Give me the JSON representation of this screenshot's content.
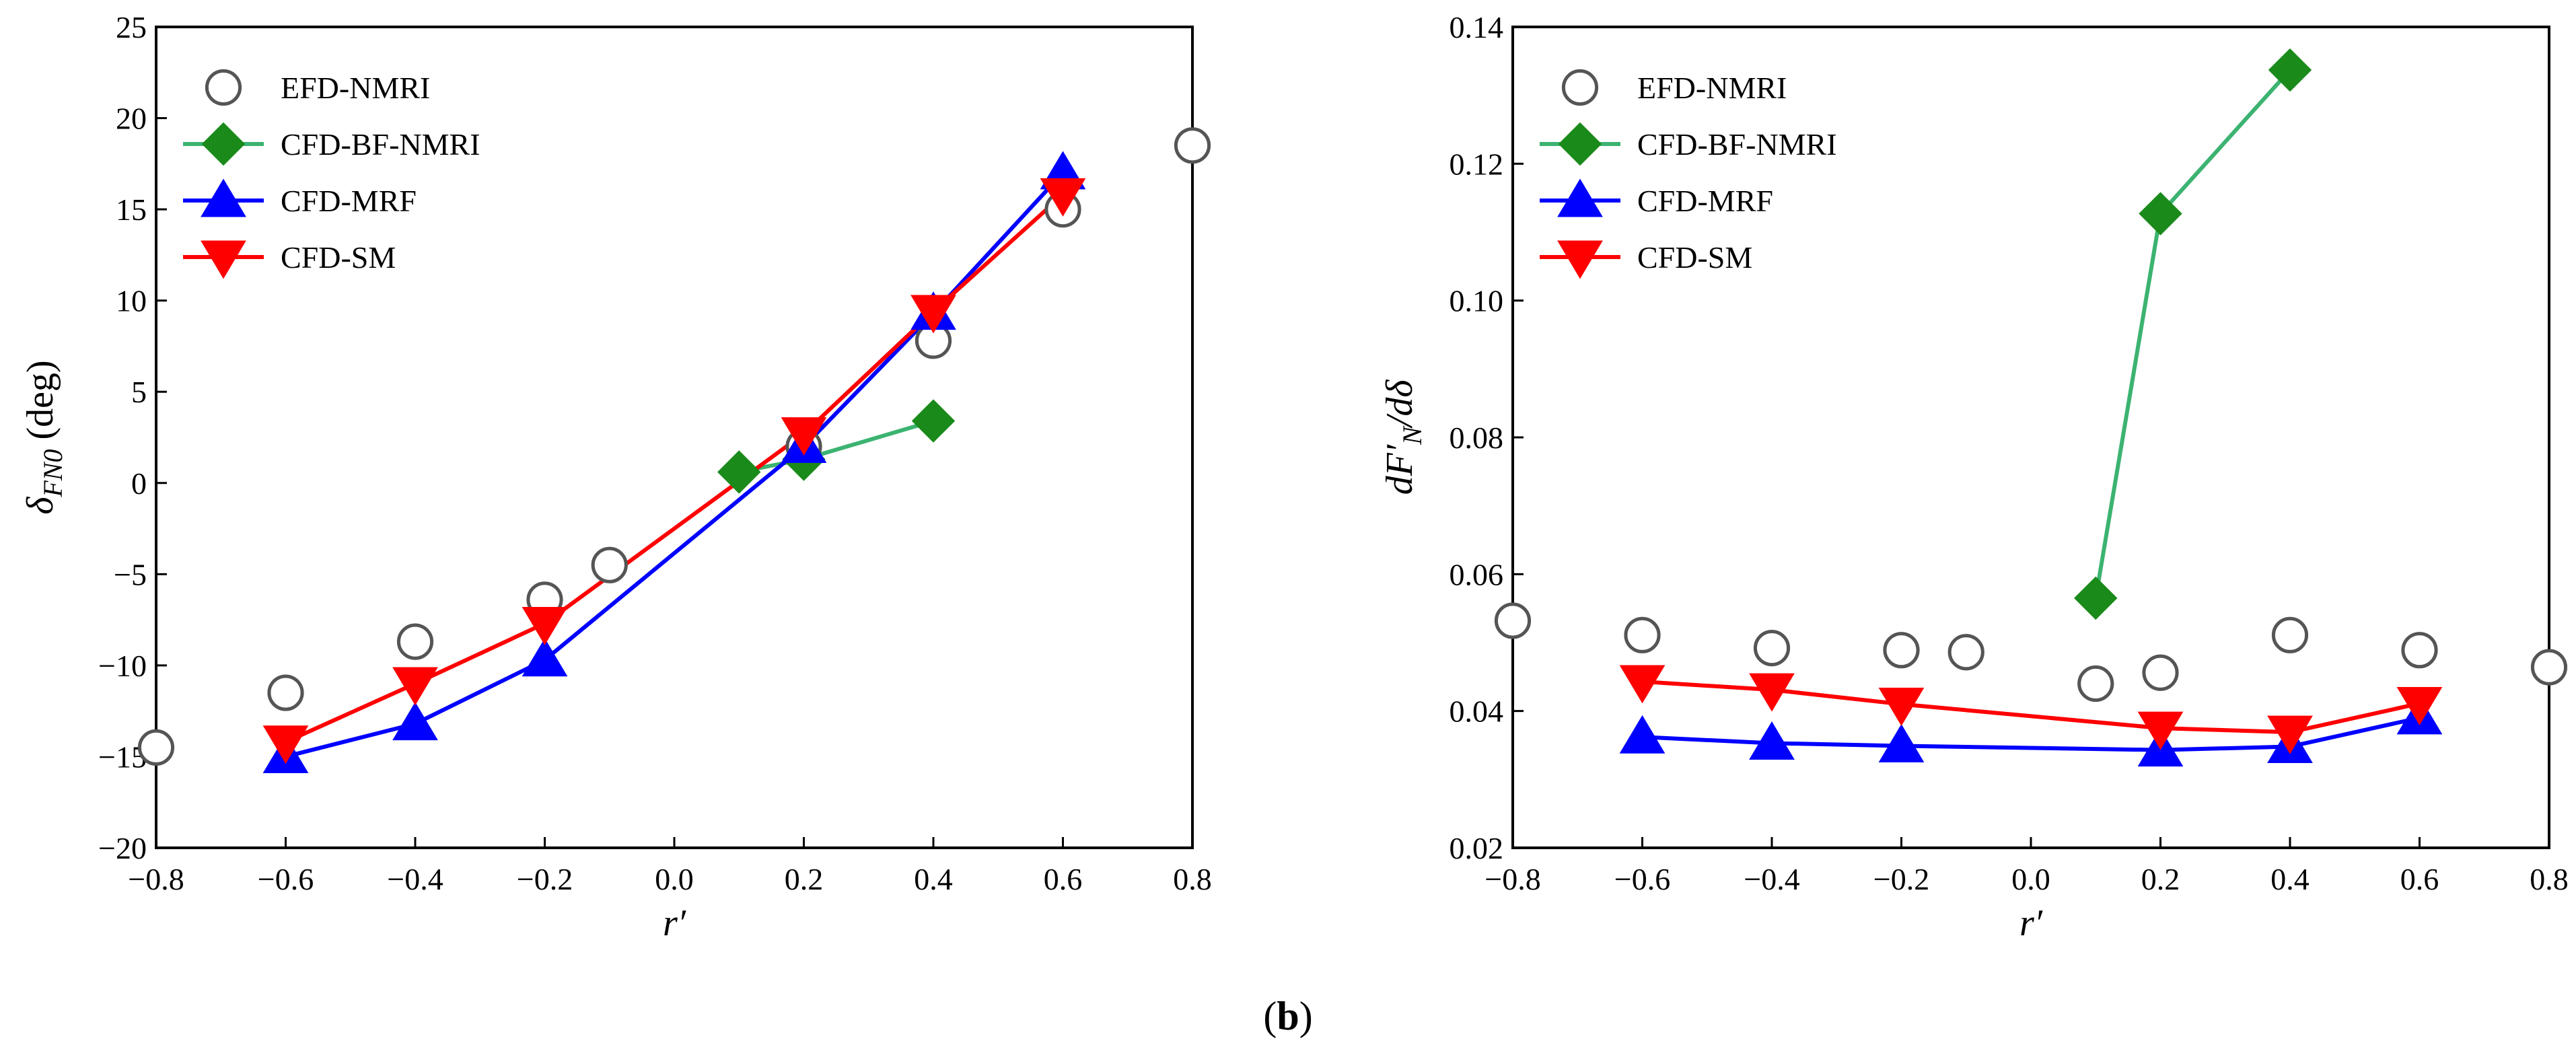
{
  "figure_caption": "(b)",
  "caption_letter": "b",
  "chart_data": [
    {
      "type": "line",
      "panel": "left",
      "xlabel": "r′",
      "ylabel_prefix": "δ",
      "ylabel_sub": "FN0",
      "ylabel_suffix": " (deg)",
      "xlim": [
        -0.8,
        0.8
      ],
      "ylim": [
        -20,
        25
      ],
      "xticks": [
        -0.8,
        -0.6,
        -0.4,
        -0.2,
        0.0,
        0.2,
        0.4,
        0.6,
        0.8
      ],
      "xtick_labels": [
        "−0.8",
        "−0.6",
        "−0.4",
        "−0.2",
        "0.0",
        "0.2",
        "0.4",
        "0.6",
        "0.8"
      ],
      "yticks": [
        -20,
        -15,
        -10,
        -5,
        0,
        5,
        10,
        15,
        20,
        25
      ],
      "ytick_labels": [
        "−20",
        "−15",
        "−10",
        "−5",
        "0",
        "5",
        "10",
        "15",
        "20",
        "25"
      ],
      "legend_position": "top-left",
      "series": [
        {
          "name": "EFD-NMRI",
          "marker": "circle",
          "line": false,
          "color": "#555555",
          "x": [
            -0.8,
            -0.6,
            -0.4,
            -0.2,
            -0.1,
            0.2,
            0.4,
            0.6,
            0.8
          ],
          "y": [
            -14.5,
            -11.5,
            -8.7,
            -6.4,
            -4.5,
            2.0,
            7.8,
            15.0,
            18.5
          ]
        },
        {
          "name": "CFD-BF-NMRI",
          "marker": "diamond",
          "line": true,
          "color": "#3cb371",
          "marker_color": "#1a8a1a",
          "x": [
            0.1,
            0.2,
            0.4
          ],
          "y": [
            0.6,
            1.3,
            3.4
          ]
        },
        {
          "name": "CFD-MRF",
          "marker": "triangle-up",
          "line": true,
          "color": "#0000ff",
          "x": [
            -0.6,
            -0.4,
            -0.2,
            0.2,
            0.4,
            0.6
          ],
          "y": [
            -15.0,
            -13.2,
            -9.7,
            2.0,
            9.3,
            17.0
          ]
        },
        {
          "name": "CFD-SM",
          "marker": "triangle-down",
          "line": true,
          "color": "#ff0000",
          "x": [
            -0.6,
            -0.4,
            -0.2,
            0.2,
            0.4,
            0.6
          ],
          "y": [
            -14.2,
            -11.0,
            -7.7,
            2.7,
            9.4,
            15.8
          ]
        }
      ]
    },
    {
      "type": "line",
      "panel": "right",
      "xlabel": "r′",
      "ylabel_prefix": "dF′",
      "ylabel_sub": "N",
      "ylabel_suffix": "/dδ",
      "xlim": [
        -0.8,
        0.8
      ],
      "ylim": [
        0.02,
        0.14
      ],
      "xticks": [
        -0.8,
        -0.6,
        -0.4,
        -0.2,
        0.0,
        0.2,
        0.4,
        0.6,
        0.8
      ],
      "xtick_labels": [
        "−0.8",
        "−0.6",
        "−0.4",
        "−0.2",
        "0.0",
        "0.2",
        "0.4",
        "0.6",
        "0.8"
      ],
      "yticks": [
        0.02,
        0.04,
        0.06,
        0.08,
        0.1,
        0.12,
        0.14
      ],
      "ytick_labels": [
        "0.02",
        "0.04",
        "0.06",
        "0.08",
        "0.10",
        "0.12",
        "0.14"
      ],
      "legend_position": "top-left",
      "series": [
        {
          "name": "EFD-NMRI",
          "marker": "circle",
          "line": false,
          "color": "#555555",
          "x": [
            -0.8,
            -0.6,
            -0.4,
            -0.2,
            -0.1,
            0.1,
            0.2,
            0.4,
            0.6,
            0.8
          ],
          "y": [
            0.0532,
            0.0511,
            0.0492,
            0.0489,
            0.0486,
            0.044,
            0.0456,
            0.0511,
            0.0489,
            0.0464
          ]
        },
        {
          "name": "CFD-BF-NMRI",
          "marker": "diamond",
          "line": true,
          "color": "#3cb371",
          "marker_color": "#1a8a1a",
          "x": [
            0.1,
            0.2,
            0.4
          ],
          "y": [
            0.0565,
            0.1127,
            0.1337
          ]
        },
        {
          "name": "CFD-MRF",
          "marker": "triangle-up",
          "line": true,
          "color": "#0000ff",
          "x": [
            -0.6,
            -0.4,
            -0.2,
            0.2,
            0.4,
            0.6
          ],
          "y": [
            0.0362,
            0.0353,
            0.0349,
            0.0343,
            0.0348,
            0.039
          ]
        },
        {
          "name": "CFD-SM",
          "marker": "triangle-down",
          "line": true,
          "color": "#ff0000",
          "x": [
            -0.6,
            -0.4,
            -0.2,
            0.2,
            0.4,
            0.6
          ],
          "y": [
            0.0443,
            0.0431,
            0.041,
            0.0375,
            0.0369,
            0.0411
          ]
        }
      ]
    }
  ]
}
